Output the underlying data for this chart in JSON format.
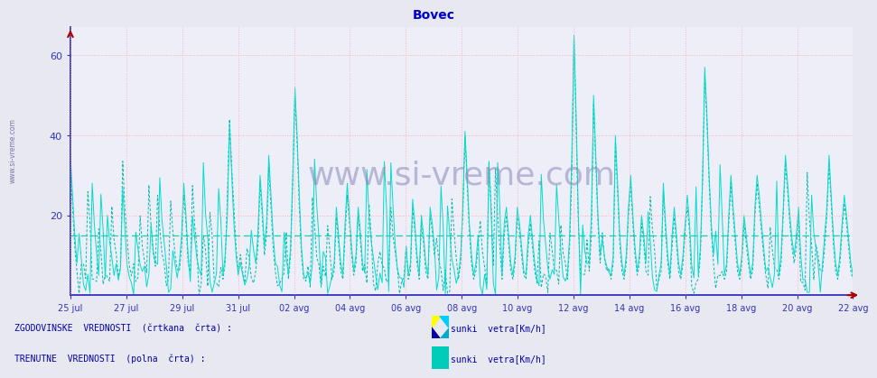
{
  "title": "Bovec",
  "title_color": "#0000cc",
  "title_fontsize": 10,
  "bg_color": "#e8e8f0",
  "plot_bg_color": "#eeeef8",
  "ylim": [
    0,
    67
  ],
  "yticks": [
    20,
    40,
    60
  ],
  "yticklabels": [
    "20",
    "40",
    "60"
  ],
  "grid_color": "#ffaaaa",
  "axis_color": "#3333bb",
  "line_color_solid": "#00ddcc",
  "line_color_dashed": "#00bbaa",
  "hline_color": "#00ccaa",
  "hline_y": 15,
  "watermark": "www.si-vreme.com",
  "watermark_color": "#8888bb",
  "xtick_labels": [
    "25 jul",
    "27 jul",
    "29 jul",
    "31 jul",
    "02 avg",
    "04 avg",
    "06 avg",
    "08 avg",
    "10 avg",
    "12 avg",
    "14 avg",
    "16 avg",
    "18 avg",
    "20 avg",
    "22 avg"
  ],
  "n_points": 360,
  "legend_text_hist": "ZGODOVINSKE  VREDNOSTI  (črtkana  črta) :",
  "legend_text_curr": "TRENUTNE  VREDNOSTI  (polna  črta) :",
  "legend_label": "sunki  vetra[Km/h]",
  "left_label": "www.si-vreme.com",
  "arrow_color": "#aa0000"
}
